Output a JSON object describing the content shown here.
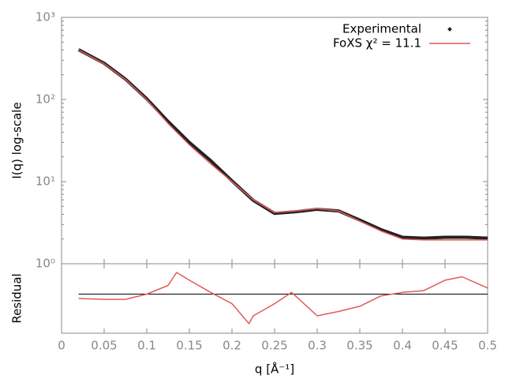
{
  "chart_data": [
    {
      "type": "line",
      "ylabel": "I(q) log-scale",
      "log_y": true,
      "xlim": [
        0,
        0.5
      ],
      "ylim": [
        1,
        1000
      ],
      "yticks": [
        {
          "value": 1,
          "label": "10⁰"
        },
        {
          "value": 10,
          "label": "10¹"
        },
        {
          "value": 100,
          "label": "10²"
        },
        {
          "value": 1000,
          "label": "10³"
        }
      ],
      "legend": "upper right",
      "x": [
        0.02,
        0.05,
        0.075,
        0.1,
        0.125,
        0.15,
        0.175,
        0.2,
        0.225,
        0.25,
        0.275,
        0.3,
        0.325,
        0.35,
        0.375,
        0.4,
        0.425,
        0.45,
        0.475,
        0.5
      ],
      "series": [
        {
          "name": "Experimental",
          "color": "#222222",
          "marker": "point",
          "values": [
            404,
            276,
            177,
            102,
            54,
            30,
            18,
            10.2,
            5.9,
            4.1,
            4.3,
            4.6,
            4.4,
            3.4,
            2.6,
            2.1,
            2.05,
            2.1,
            2.1,
            2.05
          ]
        },
        {
          "name": "FoXS χ² = 11.1",
          "color": "#e05a5a",
          "marker": "line",
          "values": [
            400,
            272,
            175,
            100,
            51,
            28,
            16.5,
            10,
            6.0,
            4.2,
            4.4,
            4.7,
            4.4,
            3.3,
            2.5,
            2.0,
            1.95,
            1.95,
            1.95,
            1.95
          ]
        }
      ]
    },
    {
      "type": "line",
      "ylabel": "Residual",
      "xlabel": "q [Å⁻¹]",
      "xlim": [
        0,
        0.5
      ],
      "xticks": [
        0,
        0.05,
        0.1,
        0.15,
        0.2,
        0.25,
        0.3,
        0.35,
        0.4,
        0.45,
        0.5
      ],
      "ylim": [
        -4.5,
        3.5
      ],
      "hline": 0,
      "x": [
        0.02,
        0.05,
        0.075,
        0.1,
        0.125,
        0.135,
        0.15,
        0.175,
        0.2,
        0.22,
        0.225,
        0.25,
        0.27,
        0.29,
        0.3,
        0.325,
        0.35,
        0.375,
        0.4,
        0.425,
        0.45,
        0.47,
        0.5
      ],
      "series": [
        {
          "color": "#e05a5a",
          "marker": "line",
          "values": [
            -0.5,
            -0.6,
            -0.6,
            0,
            1,
            2.5,
            1.6,
            0.2,
            -1.1,
            -3.4,
            -2.5,
            -1.1,
            0.2,
            -1.6,
            -2.5,
            -2,
            -1.4,
            -0.2,
            0.2,
            0.4,
            1.6,
            2,
            0.7
          ]
        }
      ]
    }
  ]
}
